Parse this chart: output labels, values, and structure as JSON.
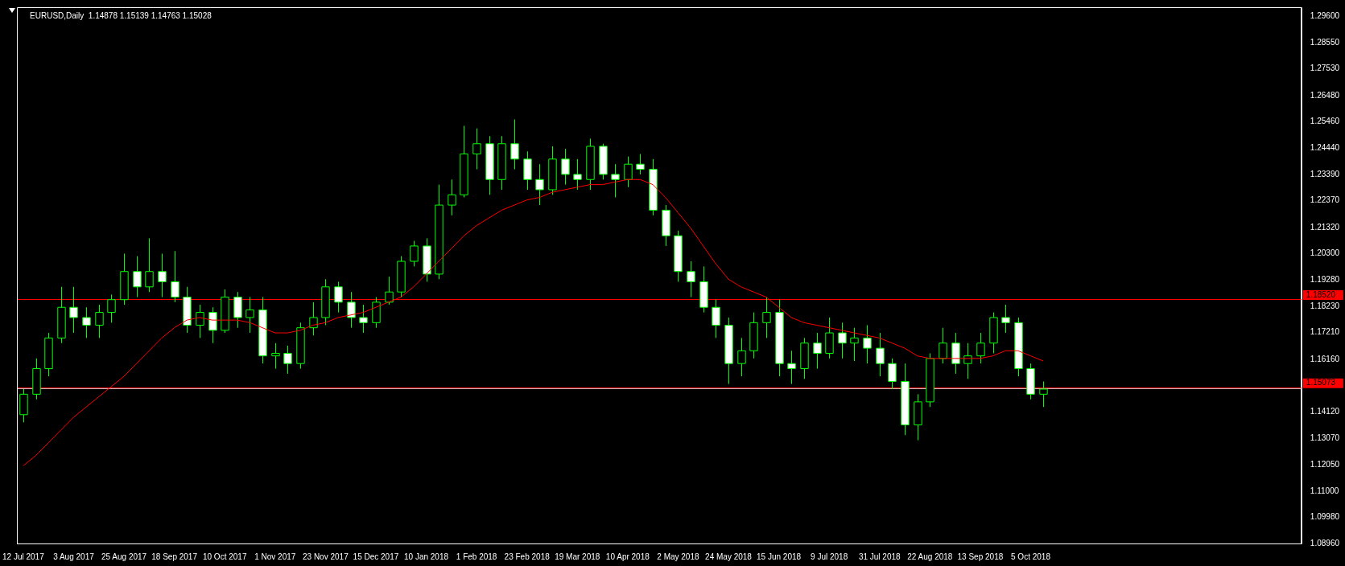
{
  "chart_data": {
    "type": "candlestick",
    "title": "EURUSD,Daily  1.14878 1.15139 1.14763 1.15028",
    "categories": [
      "12 Jul 2017",
      null,
      null,
      null,
      "3 Aug 2017",
      null,
      null,
      null,
      "25 Aug 2017",
      null,
      null,
      null,
      "18 Sep 2017",
      null,
      null,
      null,
      "10 Oct 2017",
      null,
      null,
      null,
      "1 Nov 2017",
      null,
      null,
      null,
      "23 Nov 2017",
      null,
      null,
      null,
      "15 Dec 2017",
      null,
      null,
      null,
      "10 Jan 2018",
      null,
      null,
      null,
      "1 Feb 2018",
      null,
      null,
      null,
      "23 Feb 2018",
      null,
      null,
      null,
      "19 Mar 2018",
      null,
      null,
      null,
      "10 Apr 2018",
      null,
      null,
      null,
      "2 May 2018",
      null,
      null,
      null,
      "24 May 2018",
      null,
      null,
      null,
      "15 Jun 2018",
      null,
      null,
      null,
      "9 Jul 2018",
      null,
      null,
      null,
      "31 Jul 2018",
      null,
      null,
      null,
      "22 Aug 2018",
      null,
      null,
      null,
      "13 Sep 2018",
      null,
      null,
      null,
      "5 Oct 2018",
      null,
      null,
      null,
      null,
      null,
      null,
      null,
      null,
      null,
      null,
      null,
      null,
      null,
      null,
      null,
      null,
      null,
      null,
      null,
      null,
      null
    ],
    "ohlc": [
      [
        1.14,
        1.15,
        1.137,
        1.148
      ],
      [
        1.148,
        1.162,
        1.146,
        1.158
      ],
      [
        1.158,
        1.172,
        1.155,
        1.17
      ],
      [
        1.17,
        1.19,
        1.168,
        1.182
      ],
      [
        1.182,
        1.19,
        1.172,
        1.178
      ],
      [
        1.178,
        1.182,
        1.17,
        1.175
      ],
      [
        1.175,
        1.183,
        1.17,
        1.18
      ],
      [
        1.18,
        1.187,
        1.176,
        1.185
      ],
      [
        1.185,
        1.203,
        1.183,
        1.196
      ],
      [
        1.196,
        1.202,
        1.186,
        1.19
      ],
      [
        1.19,
        1.209,
        1.188,
        1.196
      ],
      [
        1.196,
        1.203,
        1.186,
        1.192
      ],
      [
        1.192,
        1.204,
        1.184,
        1.186
      ],
      [
        1.186,
        1.19,
        1.172,
        1.175
      ],
      [
        1.175,
        1.183,
        1.17,
        1.18
      ],
      [
        1.18,
        1.182,
        1.168,
        1.173
      ],
      [
        1.173,
        1.189,
        1.172,
        1.186
      ],
      [
        1.186,
        1.188,
        1.174,
        1.178
      ],
      [
        1.178,
        1.186,
        1.172,
        1.181
      ],
      [
        1.181,
        1.186,
        1.16,
        1.163
      ],
      [
        1.163,
        1.168,
        1.158,
        1.164
      ],
      [
        1.164,
        1.167,
        1.156,
        1.16
      ],
      [
        1.16,
        1.176,
        1.158,
        1.174
      ],
      [
        1.174,
        1.184,
        1.171,
        1.178
      ],
      [
        1.178,
        1.193,
        1.175,
        1.19
      ],
      [
        1.19,
        1.192,
        1.18,
        1.184
      ],
      [
        1.184,
        1.188,
        1.174,
        1.178
      ],
      [
        1.178,
        1.183,
        1.172,
        1.176
      ],
      [
        1.176,
        1.186,
        1.174,
        1.184
      ],
      [
        1.184,
        1.194,
        1.183,
        1.188
      ],
      [
        1.188,
        1.202,
        1.186,
        1.2
      ],
      [
        1.2,
        1.208,
        1.198,
        1.206
      ],
      [
        1.206,
        1.209,
        1.192,
        1.195
      ],
      [
        1.195,
        1.23,
        1.193,
        1.222
      ],
      [
        1.222,
        1.232,
        1.218,
        1.226
      ],
      [
        1.226,
        1.253,
        1.225,
        1.242
      ],
      [
        1.242,
        1.252,
        1.236,
        1.246
      ],
      [
        1.246,
        1.249,
        1.226,
        1.232
      ],
      [
        1.232,
        1.249,
        1.228,
        1.246
      ],
      [
        1.246,
        1.2555,
        1.236,
        1.24
      ],
      [
        1.24,
        1.243,
        1.228,
        1.232
      ],
      [
        1.232,
        1.238,
        1.222,
        1.228
      ],
      [
        1.228,
        1.245,
        1.226,
        1.24
      ],
      [
        1.24,
        1.244,
        1.23,
        1.234
      ],
      [
        1.234,
        1.24,
        1.228,
        1.232
      ],
      [
        1.232,
        1.248,
        1.228,
        1.245
      ],
      [
        1.245,
        1.246,
        1.232,
        1.234
      ],
      [
        1.234,
        1.238,
        1.225,
        1.232
      ],
      [
        1.232,
        1.241,
        1.229,
        1.238
      ],
      [
        1.238,
        1.242,
        1.234,
        1.236
      ],
      [
        1.236,
        1.24,
        1.218,
        1.22
      ],
      [
        1.22,
        1.222,
        1.206,
        1.21
      ],
      [
        1.21,
        1.212,
        1.192,
        1.196
      ],
      [
        1.196,
        1.2,
        1.186,
        1.192
      ],
      [
        1.192,
        1.198,
        1.18,
        1.182
      ],
      [
        1.182,
        1.185,
        1.17,
        1.175
      ],
      [
        1.175,
        1.178,
        1.152,
        1.16
      ],
      [
        1.16,
        1.17,
        1.155,
        1.165
      ],
      [
        1.165,
        1.18,
        1.162,
        1.176
      ],
      [
        1.176,
        1.186,
        1.17,
        1.18
      ],
      [
        1.18,
        1.185,
        1.155,
        1.16
      ],
      [
        1.16,
        1.165,
        1.152,
        1.158
      ],
      [
        1.158,
        1.17,
        1.154,
        1.168
      ],
      [
        1.168,
        1.172,
        1.158,
        1.164
      ],
      [
        1.164,
        1.178,
        1.162,
        1.172
      ],
      [
        1.172,
        1.176,
        1.162,
        1.168
      ],
      [
        1.168,
        1.174,
        1.161,
        1.17
      ],
      [
        1.17,
        1.175,
        1.16,
        1.166
      ],
      [
        1.166,
        1.172,
        1.155,
        1.16
      ],
      [
        1.16,
        1.162,
        1.15,
        1.153
      ],
      [
        1.153,
        1.16,
        1.132,
        1.136
      ],
      [
        1.136,
        1.148,
        1.13,
        1.145
      ],
      [
        1.145,
        1.164,
        1.143,
        1.162
      ],
      [
        1.162,
        1.174,
        1.16,
        1.168
      ],
      [
        1.168,
        1.172,
        1.156,
        1.16
      ],
      [
        1.16,
        1.168,
        1.154,
        1.163
      ],
      [
        1.163,
        1.172,
        1.16,
        1.168
      ],
      [
        1.168,
        1.18,
        1.164,
        1.178
      ],
      [
        1.178,
        1.183,
        1.172,
        1.176
      ],
      [
        1.176,
        1.178,
        1.155,
        1.158
      ],
      [
        1.158,
        1.16,
        1.146,
        1.148
      ],
      [
        1.148,
        1.153,
        1.143,
        1.15
      ],
      null,
      null,
      null,
      null,
      null,
      null,
      null,
      null,
      null,
      null,
      null,
      null,
      null,
      null,
      null,
      null,
      null,
      null,
      null,
      null
    ],
    "color": "#00ff00",
    "series": [
      {
        "type": "line",
        "color": "#ff0000",
        "values": [
          1.12,
          1.124,
          1.129,
          1.134,
          1.139,
          1.143,
          1.147,
          1.151,
          1.155,
          1.16,
          1.165,
          1.17,
          1.174,
          1.177,
          1.178,
          1.177,
          1.177,
          1.177,
          1.176,
          1.174,
          1.172,
          1.172,
          1.173,
          1.175,
          1.176,
          1.178,
          1.179,
          1.18,
          1.182,
          1.184,
          1.186,
          1.19,
          1.195,
          1.2,
          1.205,
          1.21,
          1.214,
          1.217,
          1.22,
          1.222,
          1.224,
          1.225,
          1.227,
          1.228,
          1.229,
          1.23,
          1.23,
          1.231,
          1.232,
          1.232,
          1.23,
          1.225,
          1.219,
          1.213,
          1.206,
          1.199,
          1.193,
          1.19,
          1.188,
          1.186,
          1.182,
          1.178,
          1.176,
          1.175,
          1.174,
          1.173,
          1.172,
          1.171,
          1.17,
          1.168,
          1.166,
          1.163,
          1.162,
          1.162,
          1.162,
          1.162,
          1.162,
          1.163,
          1.165,
          1.165,
          1.163,
          1.161,
          null,
          null,
          null,
          null,
          null,
          null,
          null,
          null,
          null,
          null,
          null,
          null,
          null,
          null,
          null,
          null,
          null,
          null,
          null,
          null
        ]
      }
    ],
    "ylim": [
      1.0896,
      1.2994
    ],
    "yticks": [
      {
        "value": 1.296,
        "label": "1.29600"
      },
      {
        "value": 1.2855,
        "label": "1.28550"
      },
      {
        "value": 1.2753,
        "label": "1.27530"
      },
      {
        "value": 1.2648,
        "label": "1.26480"
      },
      {
        "value": 1.2546,
        "label": "1.25460"
      },
      {
        "value": 1.2444,
        "label": "1.24440"
      },
      {
        "value": 1.2339,
        "label": "1.23390"
      },
      {
        "value": 1.2237,
        "label": "1.22370"
      },
      {
        "value": 1.2132,
        "label": "1.21320"
      },
      {
        "value": 1.203,
        "label": "1.20300"
      },
      {
        "value": 1.1928,
        "label": "1.19280"
      },
      {
        "value": 1.1823,
        "label": "1.18230"
      },
      {
        "value": 1.1721,
        "label": "1.17210"
      },
      {
        "value": 1.1616,
        "label": "1.16160"
      },
      {
        "value": 1.1412,
        "label": "1.14120"
      },
      {
        "value": 1.1307,
        "label": "1.13070"
      },
      {
        "value": 1.1205,
        "label": "1.12050"
      },
      {
        "value": 1.11,
        "label": "1.11000"
      },
      {
        "value": 1.0998,
        "label": "1.09980"
      },
      {
        "value": 1.0896,
        "label": "1.08960"
      }
    ],
    "ref_lines": [
      {
        "axis": "y",
        "value": 1.1852,
        "label": "1.18520",
        "color": "#ff0000"
      },
      {
        "axis": "y",
        "value": 1.15073,
        "label": "1.15073",
        "color": "#ff0000"
      },
      {
        "axis": "y",
        "value": 1.15028,
        "label": null,
        "color": "#c0c0c0"
      }
    ],
    "grid": false,
    "legend": false
  }
}
